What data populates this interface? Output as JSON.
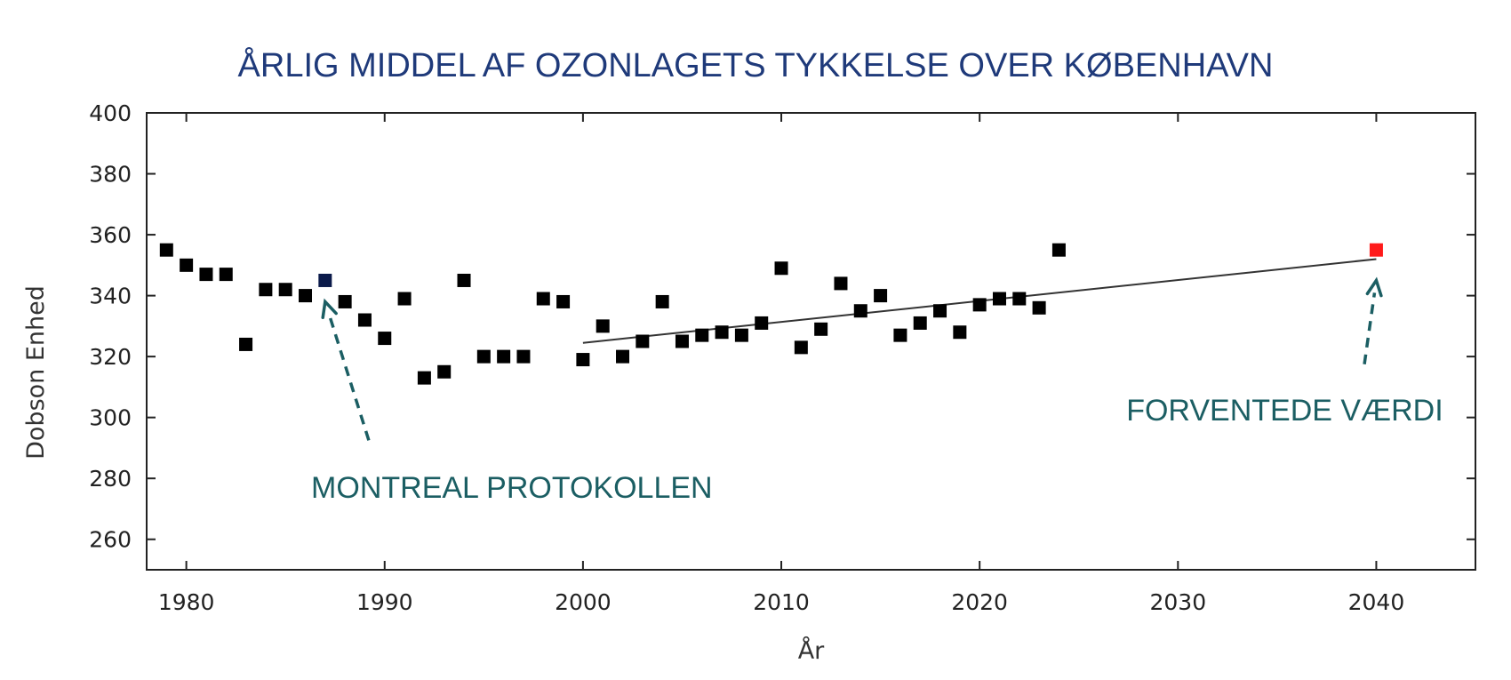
{
  "chart_data": {
    "type": "scatter",
    "title": "ÅRLIG MIDDEL AF OZONLAGETS TYKKELSE OVER KØBENHAVN",
    "xlabel": "År",
    "ylabel": "Dobson Enhed",
    "xlim": [
      1978,
      2045
    ],
    "ylim": [
      250,
      400
    ],
    "xticks": [
      1980,
      1990,
      2000,
      2010,
      2020,
      2030,
      2040
    ],
    "yticks": [
      260,
      280,
      300,
      320,
      340,
      360,
      380,
      400
    ],
    "grid": false,
    "colors": {
      "points": "#000000",
      "highlight_1987": "#0b1a4a",
      "expected": "#ff1a1a",
      "annotation": "#1b5e63",
      "title": "#1f3a7a",
      "trend": "#333333"
    },
    "series": [
      {
        "points": [
          {
            "x": 1979,
            "y": 355
          },
          {
            "x": 1980,
            "y": 350
          },
          {
            "x": 1981,
            "y": 347
          },
          {
            "x": 1982,
            "y": 347
          },
          {
            "x": 1983,
            "y": 324
          },
          {
            "x": 1984,
            "y": 342
          },
          {
            "x": 1985,
            "y": 342
          },
          {
            "x": 1986,
            "y": 340
          },
          {
            "x": 1987,
            "y": 345
          },
          {
            "x": 1988,
            "y": 338
          },
          {
            "x": 1989,
            "y": 332
          },
          {
            "x": 1990,
            "y": 326
          },
          {
            "x": 1991,
            "y": 339
          },
          {
            "x": 1992,
            "y": 313
          },
          {
            "x": 1993,
            "y": 315
          },
          {
            "x": 1994,
            "y": 345
          },
          {
            "x": 1995,
            "y": 320
          },
          {
            "x": 1996,
            "y": 320
          },
          {
            "x": 1997,
            "y": 320
          },
          {
            "x": 1998,
            "y": 339
          },
          {
            "x": 1999,
            "y": 338
          },
          {
            "x": 2000,
            "y": 319
          },
          {
            "x": 2001,
            "y": 330
          },
          {
            "x": 2002,
            "y": 320
          },
          {
            "x": 2003,
            "y": 325
          },
          {
            "x": 2004,
            "y": 338
          },
          {
            "x": 2005,
            "y": 325
          },
          {
            "x": 2006,
            "y": 327
          },
          {
            "x": 2007,
            "y": 328
          },
          {
            "x": 2008,
            "y": 327
          },
          {
            "x": 2009,
            "y": 331
          },
          {
            "x": 2010,
            "y": 349
          },
          {
            "x": 2011,
            "y": 323
          },
          {
            "x": 2012,
            "y": 329
          },
          {
            "x": 2013,
            "y": 344
          },
          {
            "x": 2014,
            "y": 335
          },
          {
            "x": 2015,
            "y": 340
          },
          {
            "x": 2016,
            "y": 327
          },
          {
            "x": 2017,
            "y": 331
          },
          {
            "x": 2018,
            "y": 335
          },
          {
            "x": 2019,
            "y": 328
          },
          {
            "x": 2020,
            "y": 337
          },
          {
            "x": 2021,
            "y": 339
          },
          {
            "x": 2022,
            "y": 339
          },
          {
            "x": 2023,
            "y": 336
          },
          {
            "x": 2024,
            "y": 355
          }
        ]
      }
    ],
    "expected_point": {
      "x": 2040,
      "y": 355
    },
    "trend_line": {
      "x": [
        2000,
        2040
      ],
      "y": [
        324.5,
        352
      ]
    },
    "annotations": [
      {
        "text": "MONTREAL PROTOKOLLEN",
        "points_to": {
          "x": 1987,
          "y": 338
        }
      },
      {
        "text": "FORVENTEDE VÆRDI",
        "points_to": {
          "x": 2040,
          "y": 345
        }
      }
    ]
  }
}
